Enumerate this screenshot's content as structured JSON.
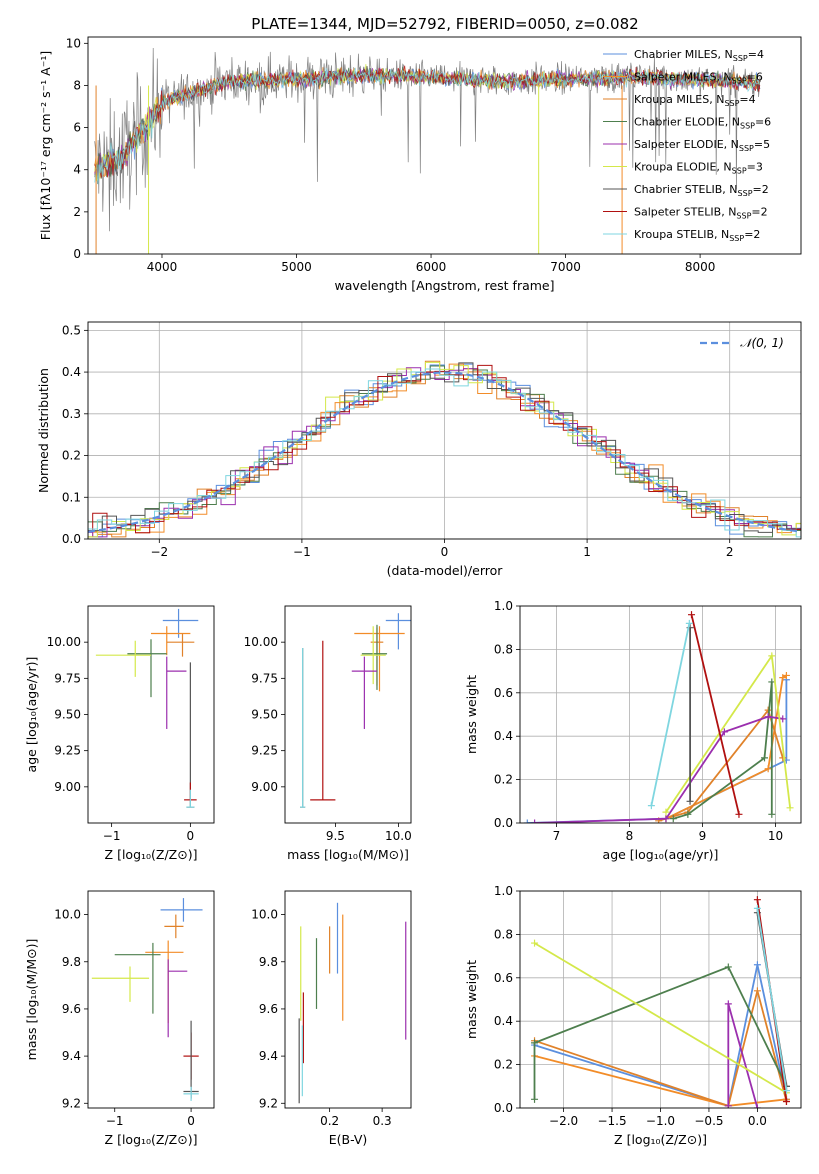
{
  "figure_title": "PLATE=1344, MJD=52792, FIBERID=0050, z=0.082",
  "series_names": [
    "Chabrier MILES, Nₛₛₚ=4",
    "Salpeter MILES, Nₛₛₚ=6",
    "Kroupa MILES, Nₛₛₚ=4",
    "Chabrier ELODIE, Nₛₛₚ=6",
    "Salpeter ELODIE, Nₛₛₚ=5",
    "Kroupa ELODIE, Nₛₛₚ=3",
    "Chabrier STELIB, Nₛₛₚ=2",
    "Salpeter STELIB, Nₛₛₚ=2",
    "Kroupa STELIB, Nₛₛₚ=2"
  ],
  "legend": [
    {
      "base": "Chabrier MILES, N",
      "sub": "SSP",
      "num": "=4"
    },
    {
      "base": "Salpeter MILES, N",
      "sub": "SSP",
      "num": "=6"
    },
    {
      "base": "Kroupa MILES, N",
      "sub": "SSP",
      "num": "=4"
    },
    {
      "base": "Chabrier ELODIE, N",
      "sub": "SSP",
      "num": "=6"
    },
    {
      "base": "Salpeter ELODIE, N",
      "sub": "SSP",
      "num": "=5"
    },
    {
      "base": "Kroupa ELODIE, N",
      "sub": "SSP",
      "num": "=3"
    },
    {
      "base": "Chabrier STELIB, N",
      "sub": "SSP",
      "num": "=2"
    },
    {
      "base": "Salpeter STELIB, N",
      "sub": "SSP",
      "num": "=2"
    },
    {
      "base": "Kroupa STELIB, N",
      "sub": "SSP",
      "num": "=2"
    }
  ],
  "colors": [
    "#5b8fde",
    "#f28c28",
    "#e0822a",
    "#4e7f4e",
    "#9b2fae",
    "#d4e84a",
    "#555555",
    "#b01010",
    "#7fd6e0"
  ],
  "chart_data": [
    {
      "id": "spectrum",
      "type": "line",
      "xlabel": "wavelength [Angstrom, rest frame]",
      "ylabel": "Flux [fλ10⁻¹⁷ erg cm⁻² s⁻¹ A⁻¹]",
      "xlim": [
        3450,
        8750
      ],
      "ylim": [
        0,
        10.3
      ],
      "xticks": [
        4000,
        5000,
        6000,
        7000,
        8000
      ],
      "yticks": [
        0,
        2,
        4,
        6,
        8,
        10
      ],
      "continuum": [
        [
          3500,
          4.0
        ],
        [
          3700,
          4.6
        ],
        [
          3900,
          6.2
        ],
        [
          4000,
          7.2
        ],
        [
          4200,
          7.6
        ],
        [
          4500,
          8.2
        ],
        [
          5000,
          8.3
        ],
        [
          5500,
          8.5
        ],
        [
          6000,
          8.4
        ],
        [
          6500,
          8.2
        ],
        [
          7000,
          8.3
        ],
        [
          7500,
          8.4
        ],
        [
          8000,
          8.3
        ],
        [
          8400,
          8.1
        ]
      ]
    },
    {
      "id": "residuals",
      "type": "line",
      "xlabel": "(data-model)/error",
      "ylabel": "Normed distribution",
      "xlim": [
        -2.5,
        2.5
      ],
      "ylim": [
        0,
        0.52
      ],
      "xticks": [
        -2,
        -1,
        0,
        1,
        2
      ],
      "yticks": [
        0.0,
        0.1,
        0.2,
        0.3,
        0.4,
        0.5
      ],
      "legend": "𝒩(0, 1)"
    },
    {
      "id": "age_vs_Z",
      "type": "scatter",
      "xlabel": "Z [log₁₀(Z/Z⊙)]",
      "ylabel": "age  [log₁₀(age/yr)]",
      "xlim": [
        -1.3,
        0.3
      ],
      "ylim": [
        8.75,
        10.25
      ],
      "xticks": [
        -1,
        0
      ],
      "yticks": [
        9.0,
        9.25,
        9.5,
        9.75,
        10.0
      ],
      "points": [
        {
          "c": 0,
          "x": -0.15,
          "y": 10.15,
          "xerr": [
            0.2,
            0.25
          ],
          "yerr": [
            0.12,
            0.08
          ]
        },
        {
          "c": 1,
          "x": -0.3,
          "y": 10.06,
          "xerr": [
            0.2,
            0.3
          ],
          "yerr": [
            0.15,
            0.05
          ]
        },
        {
          "c": 2,
          "x": -0.1,
          "y": 10.0,
          "xerr": [
            0.2,
            0.15
          ],
          "yerr": [
            0.1,
            0.06
          ]
        },
        {
          "c": 3,
          "x": -0.5,
          "y": 9.92,
          "xerr": [
            0.3,
            0.2
          ],
          "yerr": [
            0.3,
            0.1
          ]
        },
        {
          "c": 5,
          "x": -0.7,
          "y": 9.91,
          "xerr": [
            0.5,
            0.2
          ],
          "yerr": [
            0.15,
            0.1
          ]
        },
        {
          "c": 4,
          "x": -0.3,
          "y": 9.8,
          "xerr": [
            0.0,
            0.25
          ],
          "yerr": [
            0.4,
            0.1
          ]
        },
        {
          "c": 6,
          "x": 0.0,
          "y": 8.86,
          "xerr": [
            0.05,
            0.05
          ],
          "yerr": [
            0.0,
            1.0
          ]
        },
        {
          "c": 7,
          "x": 0.0,
          "y": 8.91,
          "xerr": [
            0.08,
            0.08
          ],
          "yerr": [
            0.0,
            0.12
          ]
        },
        {
          "c": 8,
          "x": 0.0,
          "y": 8.86,
          "xerr": [
            0.05,
            0.05
          ],
          "yerr": [
            0.0,
            0.12
          ]
        }
      ]
    },
    {
      "id": "age_vs_mass",
      "type": "scatter",
      "xlabel": "mass [log₁₀(M/M⊙)]",
      "ylabel": "",
      "xlim": [
        9.1,
        10.1
      ],
      "ylim": [
        8.75,
        10.25
      ],
      "xticks": [
        9.5,
        10.0
      ],
      "yticks": [
        9.0,
        9.25,
        9.5,
        9.75,
        10.0
      ],
      "points": [
        {
          "c": 0,
          "x": 10.0,
          "y": 10.15,
          "xerr": [
            0.1,
            0.1
          ],
          "yerr": [
            0.2,
            0.05
          ]
        },
        {
          "c": 1,
          "x": 9.85,
          "y": 10.06,
          "xerr": [
            0.2,
            0.2
          ],
          "yerr": [
            0.4,
            0.05
          ]
        },
        {
          "c": 2,
          "x": 9.83,
          "y": 10.0,
          "xerr": [
            0.05,
            0.05
          ],
          "yerr": [
            0.3,
            0.1
          ]
        },
        {
          "c": 3,
          "x": 9.83,
          "y": 9.92,
          "xerr": [
            0.12,
            0.08
          ],
          "yerr": [
            0.25,
            0.2
          ]
        },
        {
          "c": 5,
          "x": 9.8,
          "y": 9.91,
          "xerr": [
            0.1,
            0.1
          ],
          "yerr": [
            0.2,
            0.2
          ]
        },
        {
          "c": 4,
          "x": 9.73,
          "y": 9.8,
          "xerr": [
            0.1,
            0.1
          ],
          "yerr": [
            0.4,
            0.1
          ]
        },
        {
          "c": 6,
          "x": 9.24,
          "y": 8.86,
          "xerr": [
            0.02,
            0.02
          ],
          "yerr": [
            0.0,
            1.1
          ]
        },
        {
          "c": 7,
          "x": 9.4,
          "y": 8.91,
          "xerr": [
            0.1,
            0.1
          ],
          "yerr": [
            0.0,
            1.1
          ]
        },
        {
          "c": 8,
          "x": 9.24,
          "y": 8.86,
          "xerr": [
            0.02,
            0.02
          ],
          "yerr": [
            0.0,
            1.1
          ]
        }
      ]
    },
    {
      "id": "weight_vs_age",
      "type": "line",
      "xlabel": "age  [log₁₀(age/yr)]",
      "ylabel": "mass weight",
      "xlim": [
        6.5,
        10.35
      ],
      "ylim": [
        0,
        1.0
      ],
      "xticks": [
        7,
        8,
        9,
        10
      ],
      "yticks": [
        0.0,
        0.2,
        0.4,
        0.6,
        0.8,
        1.0
      ],
      "series": [
        {
          "c": 0,
          "x": [
            6.6,
            8.5,
            10.15,
            10.15
          ],
          "y": [
            0.0,
            0.02,
            0.29,
            0.66
          ]
        },
        {
          "c": 1,
          "x": [
            8.5,
            9.9,
            10.1,
            10.15
          ],
          "y": [
            0.02,
            0.25,
            0.67,
            0.68
          ]
        },
        {
          "c": 2,
          "x": [
            8.4,
            8.8,
            9.9,
            10.1
          ],
          "y": [
            0.01,
            0.05,
            0.52,
            0.3
          ]
        },
        {
          "c": 3,
          "x": [
            8.6,
            8.8,
            9.85,
            9.95,
            9.95
          ],
          "y": [
            0.02,
            0.04,
            0.3,
            0.65,
            0.04
          ]
        },
        {
          "c": 4,
          "x": [
            6.7,
            8.5,
            9.3,
            9.9,
            10.1
          ],
          "y": [
            0.0,
            0.02,
            0.42,
            0.49,
            0.48
          ]
        },
        {
          "c": 5,
          "x": [
            8.5,
            9.95,
            10.2
          ],
          "y": [
            0.05,
            0.77,
            0.07
          ]
        },
        {
          "c": 6,
          "x": [
            8.83,
            8.83
          ],
          "y": [
            0.1,
            0.9
          ]
        },
        {
          "c": 7,
          "x": [
            8.85,
            9.5
          ],
          "y": [
            0.96,
            0.04
          ]
        },
        {
          "c": 8,
          "x": [
            8.3,
            8.82
          ],
          "y": [
            0.08,
            0.92
          ]
        }
      ]
    },
    {
      "id": "mass_vs_Z",
      "type": "scatter",
      "xlabel": "Z [log₁₀(Z/Z⊙)]",
      "ylabel": "mass [log₁₀(M/M⊙)]",
      "xlim": [
        -1.35,
        0.3
      ],
      "ylim": [
        9.18,
        10.1
      ],
      "xticks": [
        -1,
        0
      ],
      "yticks": [
        9.2,
        9.4,
        9.6,
        9.8,
        10.0
      ],
      "points": [
        {
          "c": 0,
          "x": -0.1,
          "y": 10.02,
          "xerr": [
            0.3,
            0.25
          ],
          "yerr": [
            0.05,
            0.05
          ]
        },
        {
          "c": 2,
          "x": -0.2,
          "y": 9.95,
          "xerr": [
            0.15,
            0.1
          ],
          "yerr": [
            0.05,
            0.05
          ]
        },
        {
          "c": 1,
          "x": -0.3,
          "y": 9.84,
          "xerr": [
            0.3,
            0.2
          ],
          "yerr": [
            0.3,
            0.05
          ]
        },
        {
          "c": 3,
          "x": -0.5,
          "y": 9.83,
          "xerr": [
            0.5,
            0.1
          ],
          "yerr": [
            0.25,
            0.05
          ]
        },
        {
          "c": 5,
          "x": -0.8,
          "y": 9.73,
          "xerr": [
            0.5,
            0.25
          ],
          "yerr": [
            0.1,
            0.05
          ]
        },
        {
          "c": 4,
          "x": -0.3,
          "y": 9.76,
          "xerr": [
            0.0,
            0.25
          ],
          "yerr": [
            0.28,
            0.05
          ]
        },
        {
          "c": 7,
          "x": 0.0,
          "y": 9.4,
          "xerr": [
            0.1,
            0.1
          ],
          "yerr": [
            0.1,
            0.1
          ]
        },
        {
          "c": 6,
          "x": 0.0,
          "y": 9.25,
          "xerr": [
            0.1,
            0.1
          ],
          "yerr": [
            0.03,
            0.3
          ]
        },
        {
          "c": 8,
          "x": 0.0,
          "y": 9.24,
          "xerr": [
            0.1,
            0.1
          ],
          "yerr": [
            0.03,
            0.03
          ]
        }
      ]
    },
    {
      "id": "mass_vs_ebv",
      "type": "scatter",
      "xlabel": "E(B-V)",
      "ylabel": "",
      "xlim": [
        0.115,
        0.355
      ],
      "ylim": [
        9.18,
        10.1
      ],
      "xticks": [
        0.2,
        0.3
      ],
      "yticks": [
        9.2,
        9.4,
        9.6,
        9.8,
        10.0
      ],
      "points": [
        {
          "c": 0,
          "x": 0.215,
          "y": 9.9,
          "xerr": [
            0,
            0
          ],
          "yerr": [
            0.15,
            0.15
          ]
        },
        {
          "c": 1,
          "x": 0.225,
          "y": 9.8,
          "xerr": [
            0,
            0
          ],
          "yerr": [
            0.25,
            0.2
          ]
        },
        {
          "c": 2,
          "x": 0.2,
          "y": 9.85,
          "xerr": [
            0,
            0
          ],
          "yerr": [
            0.1,
            0.1
          ]
        },
        {
          "c": 3,
          "x": 0.175,
          "y": 9.8,
          "xerr": [
            0,
            0
          ],
          "yerr": [
            0.2,
            0.1
          ]
        },
        {
          "c": 4,
          "x": 0.345,
          "y": 9.72,
          "xerr": [
            0,
            0
          ],
          "yerr": [
            0.25,
            0.25
          ]
        },
        {
          "c": 5,
          "x": 0.145,
          "y": 9.75,
          "xerr": [
            0,
            0
          ],
          "yerr": [
            0.2,
            0.2
          ]
        },
        {
          "c": 6,
          "x": 0.142,
          "y": 9.38,
          "xerr": [
            0,
            0
          ],
          "yerr": [
            0.18,
            0.18
          ]
        },
        {
          "c": 7,
          "x": 0.15,
          "y": 9.52,
          "xerr": [
            0,
            0
          ],
          "yerr": [
            0.15,
            0.15
          ]
        },
        {
          "c": 8,
          "x": 0.148,
          "y": 9.38,
          "xerr": [
            0,
            0
          ],
          "yerr": [
            0.15,
            0.15
          ]
        }
      ]
    },
    {
      "id": "weight_vs_Z",
      "type": "line",
      "xlabel": "Z [log₁₀(Z/Z⊙)]",
      "ylabel": "mass weight",
      "xlim": [
        -2.45,
        0.45
      ],
      "ylim": [
        0,
        1.0
      ],
      "xticks": [
        -2.0,
        -1.5,
        -1.0,
        -0.5,
        0.0
      ],
      "yticks": [
        0.0,
        0.2,
        0.4,
        0.6,
        0.8,
        1.0
      ],
      "series": [
        {
          "c": 0,
          "x": [
            -2.3,
            -0.3,
            0.0,
            0.3
          ],
          "y": [
            0.29,
            0.01,
            0.66,
            0.04
          ]
        },
        {
          "c": 1,
          "x": [
            -2.3,
            -0.3,
            0.3
          ],
          "y": [
            0.24,
            0.01,
            0.04
          ]
        },
        {
          "c": 2,
          "x": [
            -2.3,
            -0.3,
            0.0,
            0.3
          ],
          "y": [
            0.31,
            0.01,
            0.54,
            0.03
          ]
        },
        {
          "c": 3,
          "x": [
            -2.3,
            -2.3,
            -0.3,
            0.3
          ],
          "y": [
            0.04,
            0.3,
            0.65,
            0.1
          ]
        },
        {
          "c": 4,
          "x": [
            -0.3,
            -0.3,
            0.0
          ],
          "y": [
            0.01,
            0.48,
            0.0
          ]
        },
        {
          "c": 5,
          "x": [
            -2.3,
            0.3
          ],
          "y": [
            0.76,
            0.07
          ]
        },
        {
          "c": 6,
          "x": [
            0.0,
            0.3
          ],
          "y": [
            0.9,
            0.1
          ]
        },
        {
          "c": 7,
          "x": [
            0.0,
            0.3
          ],
          "y": [
            0.96,
            0.03
          ]
        },
        {
          "c": 8,
          "x": [
            0.0,
            0.3
          ],
          "y": [
            0.92,
            0.08
          ]
        }
      ]
    }
  ]
}
